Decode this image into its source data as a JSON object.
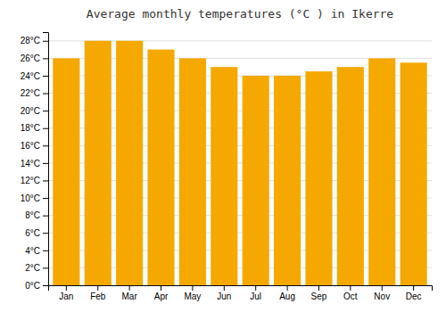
{
  "chart_data": {
    "type": "bar",
    "title": "Average monthly temperatures (°C ) in Ikerre",
    "categories": [
      "Jan",
      "Feb",
      "Mar",
      "Apr",
      "May",
      "Jun",
      "Jul",
      "Aug",
      "Sep",
      "Oct",
      "Nov",
      "Dec"
    ],
    "values": [
      26,
      28,
      28,
      27,
      26,
      25,
      24,
      24,
      24.5,
      25,
      26,
      25.5
    ],
    "color": "#F5A800",
    "ylim": [
      0,
      29
    ],
    "yticks": [
      {
        "value": 0,
        "label": "0°C"
      },
      {
        "value": 2,
        "label": "2°C"
      },
      {
        "value": 4,
        "label": "4°C"
      },
      {
        "value": 6,
        "label": "6°C"
      },
      {
        "value": 8,
        "label": "8°C"
      },
      {
        "value": 10,
        "label": "10°C"
      },
      {
        "value": 12,
        "label": "12°C"
      },
      {
        "value": 14,
        "label": "14°C"
      },
      {
        "value": 16,
        "label": "16°C"
      },
      {
        "value": 18,
        "label": "18°C"
      },
      {
        "value": 20,
        "label": "20°C"
      },
      {
        "value": 22,
        "label": "22°C"
      },
      {
        "value": 24,
        "label": "24°C"
      },
      {
        "value": 26,
        "label": "26°C"
      },
      {
        "value": 28,
        "label": "28°C"
      }
    ],
    "grid": true
  }
}
